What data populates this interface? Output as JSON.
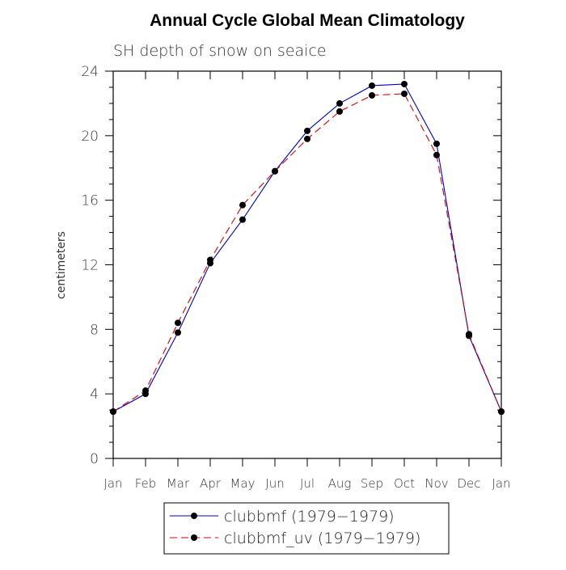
{
  "chart_data": {
    "type": "line",
    "title": "Annual Cycle Global Mean Climatology",
    "subtitle": "SH depth of snow on seaice",
    "xlabel": "",
    "ylabel": "centimeters",
    "ylim": [
      0,
      24
    ],
    "yticks": [
      "0",
      "4",
      "8",
      "12",
      "16",
      "20",
      "24"
    ],
    "categories": [
      "Jan",
      "Feb",
      "Mar",
      "Apr",
      "May",
      "Jun",
      "Jul",
      "Aug",
      "Sep",
      "Oct",
      "Nov",
      "Dec",
      "Jan"
    ],
    "legend_position": "bottom-center",
    "series": [
      {
        "name": "clubbmf (1979−1979)",
        "color": "#0000cc",
        "dash": "solid",
        "values": [
          2.9,
          4.0,
          7.8,
          12.1,
          14.8,
          17.8,
          20.3,
          22.0,
          23.1,
          23.2,
          19.5,
          7.6,
          2.9
        ]
      },
      {
        "name": "clubbmf_uv (1979−1979)",
        "color": "#dd0000",
        "dash": "dashed",
        "values": [
          2.9,
          4.2,
          8.4,
          12.3,
          15.7,
          17.8,
          19.8,
          21.5,
          22.5,
          22.6,
          18.8,
          7.7,
          2.9
        ]
      }
    ]
  }
}
